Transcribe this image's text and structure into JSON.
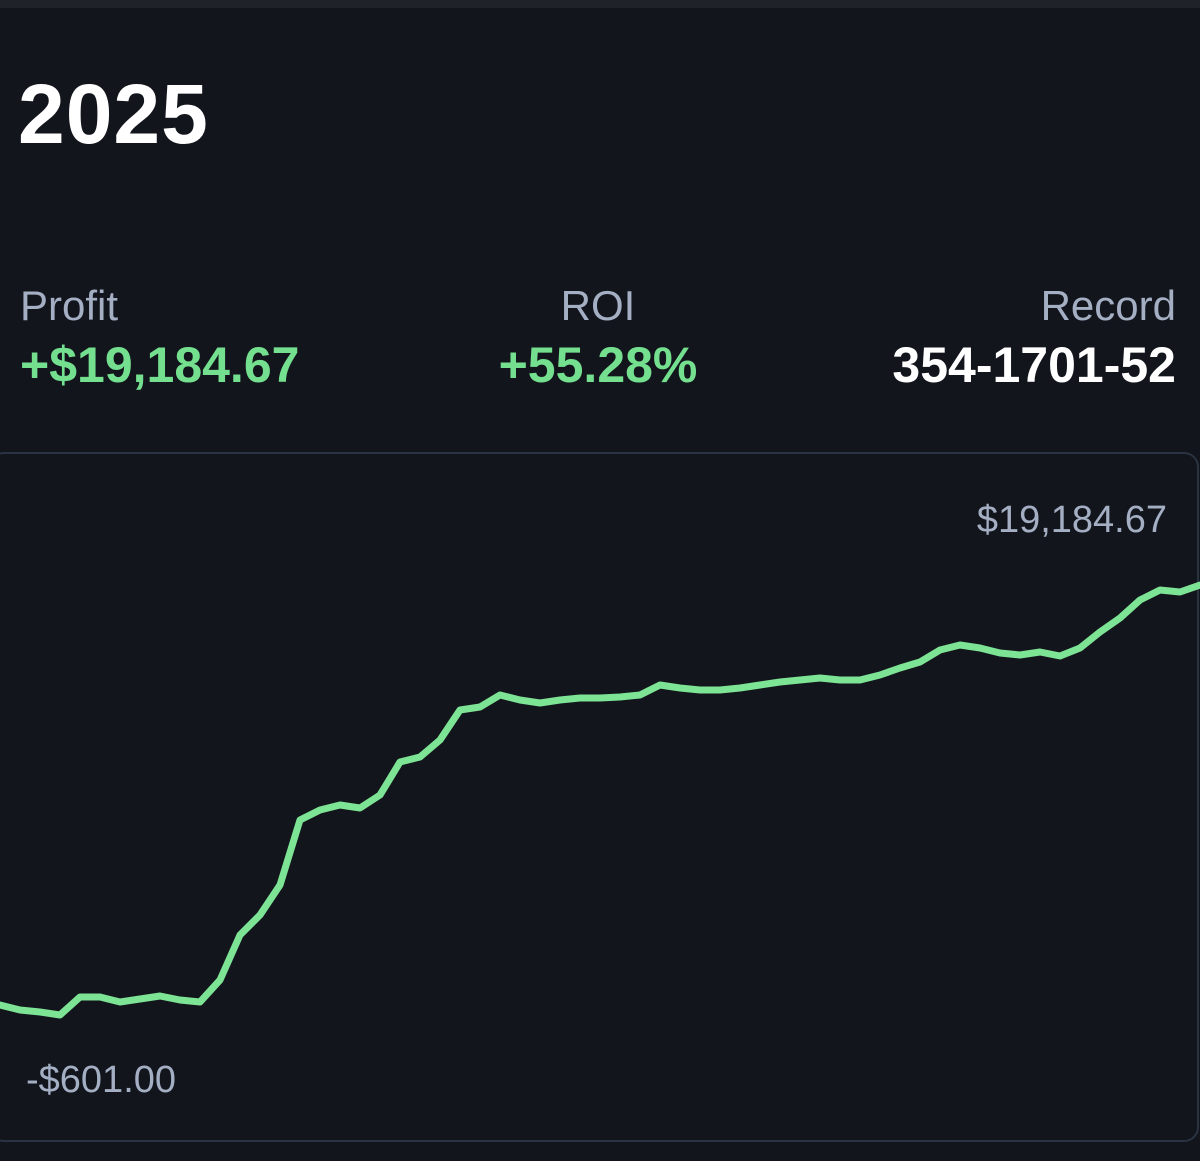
{
  "header": {
    "title": "2025"
  },
  "stats": [
    {
      "label": "Profit",
      "value": "+$19,184.67"
    },
    {
      "label": "ROI",
      "value": "+55.28%"
    },
    {
      "label": "Record",
      "value": "354-1701-52"
    }
  ],
  "chart_data": {
    "type": "line",
    "color": "#7ee495",
    "high": {
      "value": 19184.67,
      "label": "$19,184.67"
    },
    "low": {
      "value": -601,
      "label": "-$601.00"
    },
    "values": [
      -141,
      -371,
      -463,
      -601,
      227,
      227,
      -3,
      135,
      273,
      89,
      -3,
      1009,
      3080,
      4000,
      5381,
      8372,
      8832,
      9062,
      8924,
      9522,
      11040,
      11270,
      12053,
      13433,
      13571,
      14123,
      13893,
      13755,
      13893,
      13985,
      13985,
      14031,
      14123,
      14583,
      14445,
      14353,
      14353,
      14445,
      14583,
      14721,
      14813,
      14905,
      14813,
      14813,
      15043,
      15366,
      15641,
      16194,
      16424,
      16286,
      16056,
      15964,
      16102,
      15918,
      16286,
      17022,
      17666,
      18494,
      18955,
      18863,
      19184.67
    ]
  }
}
